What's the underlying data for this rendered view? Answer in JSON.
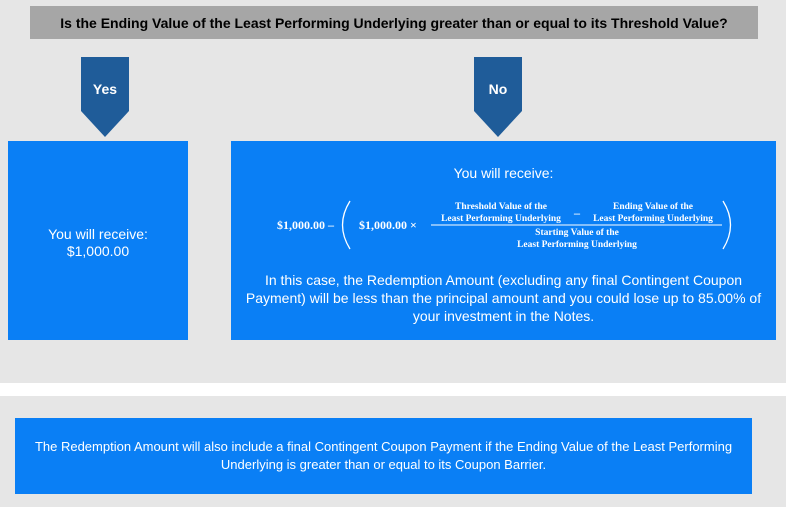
{
  "question": "Is the Ending Value of the Least Performing Underlying greater than or equal to its Threshold Value?",
  "yes_branch": {
    "label": "Yes",
    "line1": "You will receive:",
    "line2": "$1,000.00"
  },
  "no_branch": {
    "label": "No",
    "title": "You will receive:",
    "formula": {
      "lead": "$1,000.00 –",
      "inner_lead": "$1,000.00 ×",
      "num_a_line1": "Threshold Value of the",
      "num_a_line2": "Least Performing Underlying",
      "minus": "–",
      "num_b_line1": "Ending Value of the",
      "num_b_line2": "Least Performing Underlying",
      "den_line1": "Starting Value of the",
      "den_line2": "Least Performing Underlying"
    },
    "body": "In this case, the Redemption Amount (excluding any final Contingent Coupon Payment) will be less than the principal amount and you could lose up to 85.00% of your investment in the Notes."
  },
  "note": "The Redemption Amount will also include a final Contingent Coupon Payment if the Ending Value of the Least Performing Underlying is greater than or equal to its Coupon Barrier.",
  "colors": {
    "panel": "#e6e6e6",
    "question_bar": "#a6a6a6",
    "box": "#0a7ff5",
    "arrow": "#1f5c99"
  }
}
